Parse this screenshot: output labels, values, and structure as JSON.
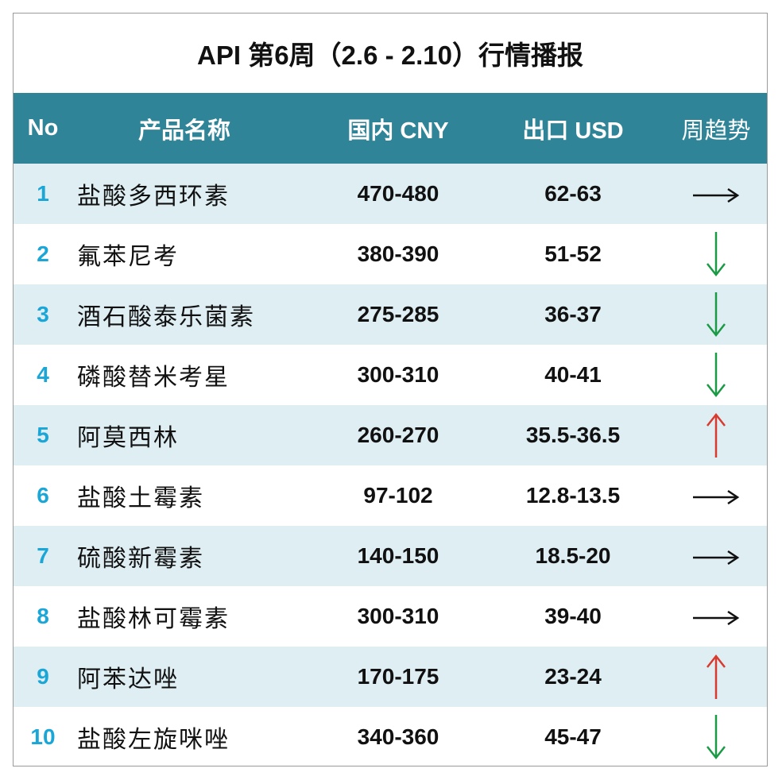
{
  "title": "API 第6周（2.6 - 2.10）行情播报",
  "columns": {
    "no": "No",
    "name": "产品名称",
    "cny": "国内 CNY",
    "usd": "出口 USD",
    "trend": "周趋势"
  },
  "colors": {
    "header_bg": "#2f8597",
    "row_alt_bg": "#deeef3",
    "number_blue": "#1aa6d6",
    "down_green": "#1a9a45",
    "up_red": "#d93a30",
    "flat_black": "#111111"
  },
  "rows": [
    {
      "no": "1",
      "name": "盐酸多西环素",
      "cny": "470-480",
      "usd": "62-63",
      "trend": "flat"
    },
    {
      "no": "2",
      "name": "氟苯尼考",
      "cny": "380-390",
      "usd": "51-52",
      "trend": "down"
    },
    {
      "no": "3",
      "name": "酒石酸泰乐菌素",
      "cny": "275-285",
      "usd": "36-37",
      "trend": "down"
    },
    {
      "no": "4",
      "name": "磷酸替米考星",
      "cny": "300-310",
      "usd": "40-41",
      "trend": "down"
    },
    {
      "no": "5",
      "name": "阿莫西林",
      "cny": "260-270",
      "usd": "35.5-36.5",
      "trend": "up"
    },
    {
      "no": "6",
      "name": "盐酸土霉素",
      "cny": "97-102",
      "usd": "12.8-13.5",
      "trend": "flat"
    },
    {
      "no": "7",
      "name": "硫酸新霉素",
      "cny": "140-150",
      "usd": "18.5-20",
      "trend": "flat"
    },
    {
      "no": "8",
      "name": "盐酸林可霉素",
      "cny": "300-310",
      "usd": "39-40",
      "trend": "flat"
    },
    {
      "no": "9",
      "name": "阿苯达唑",
      "cny": "170-175",
      "usd": "23-24",
      "trend": "up"
    },
    {
      "no": "10",
      "name": "盐酸左旋咪唑",
      "cny": "340-360",
      "usd": "45-47",
      "trend": "down"
    }
  ]
}
